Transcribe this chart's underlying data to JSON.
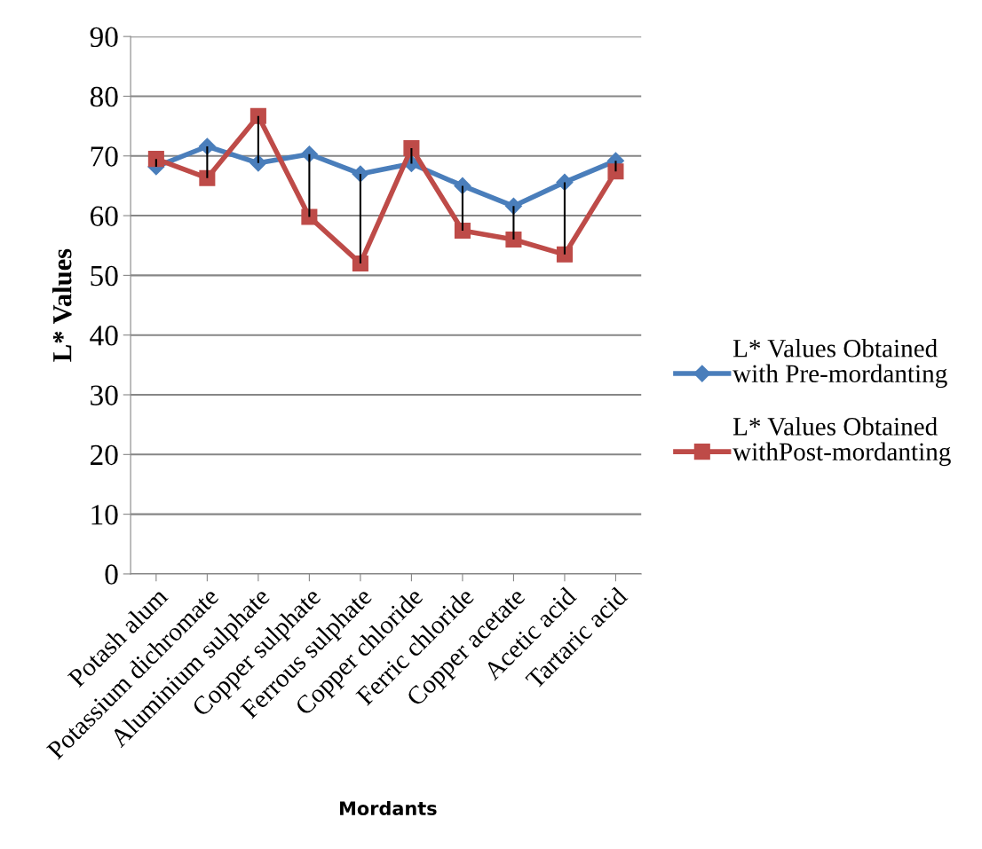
{
  "chart_data": {
    "type": "line",
    "xlabel": "Mordants",
    "ylabel": "L* Values",
    "categories": [
      "Potash alum",
      "Potassium dichromate",
      "Aluminium sulphate",
      "Copper sulphate",
      "Ferrous sulphate",
      "Copper chloride",
      "Ferric chloride",
      "Copper acetate",
      "Acetic acid",
      "Tartaric acid"
    ],
    "series": [
      {
        "name": "L* Values Obtained with Pre-mordanting",
        "color": "#4a7ebb",
        "marker": "diamond",
        "values": [
          68.2,
          71.6,
          68.8,
          70.3,
          67.0,
          68.7,
          65.0,
          61.6,
          65.6,
          69.2
        ],
        "errors": [
          [
            68.2,
            69.5
          ],
          [
            66.3,
            71.6
          ],
          [
            68.8,
            76.7
          ],
          [
            59.8,
            70.3
          ],
          [
            52.0,
            67.0
          ],
          [
            68.7,
            71.3
          ],
          [
            57.5,
            65.0
          ],
          [
            56.0,
            61.6
          ],
          [
            53.5,
            65.6
          ],
          [
            67.4,
            69.2
          ]
        ]
      },
      {
        "name": "L* Values Obtained withPost-mordanting",
        "color": "#be4b48",
        "marker": "square",
        "values": [
          69.5,
          66.3,
          76.7,
          59.8,
          52.0,
          71.3,
          57.5,
          56.0,
          53.5,
          67.4
        ]
      }
    ],
    "ylim": [
      0,
      90
    ],
    "yticks": [
      0,
      10,
      20,
      30,
      40,
      50,
      60,
      70,
      80,
      90
    ],
    "grid": "y",
    "legend": "right"
  }
}
